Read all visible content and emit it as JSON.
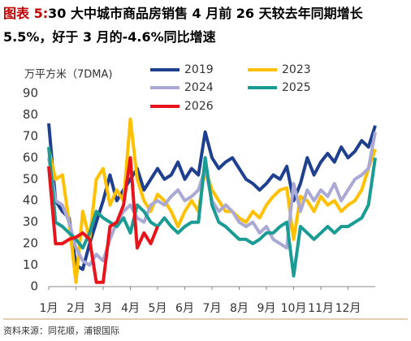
{
  "chart_data": {
    "type": "line",
    "title_prefix": "图表 5:",
    "title": "30 大中城市商品房销售 4 月前 26 天较去年同期增长 5.5%，好于 3 月的-4.6%同比增速",
    "y_label": "万平方米（7DMA)",
    "source": "资料来源：同花顺，浦银国际",
    "x": [
      1,
      1.25,
      1.5,
      1.75,
      2,
      2.25,
      2.5,
      2.75,
      3,
      3.25,
      3.5,
      3.75,
      4,
      4.25,
      4.5,
      4.75,
      5,
      5.25,
      5.5,
      5.75,
      6,
      6.25,
      6.5,
      6.75,
      7,
      7.25,
      7.5,
      7.75,
      8,
      8.25,
      8.5,
      8.75,
      9,
      9.25,
      9.5,
      9.75,
      10,
      10.25,
      10.5,
      10.75,
      11,
      11.25,
      11.5,
      11.75,
      12,
      12.25,
      12.5,
      12.75,
      13
    ],
    "xlim": [
      1,
      13
    ],
    "xticks": [
      {
        "value": 1,
        "label": "1月"
      },
      {
        "value": 2,
        "label": "2月"
      },
      {
        "value": 3,
        "label": "3月"
      },
      {
        "value": 4,
        "label": "4月"
      },
      {
        "value": 5,
        "label": "5月"
      },
      {
        "value": 6,
        "label": "6月"
      },
      {
        "value": 7,
        "label": "7月"
      },
      {
        "value": 8,
        "label": "8月"
      },
      {
        "value": 9,
        "label": "9月"
      },
      {
        "value": 10,
        "label": "10月"
      },
      {
        "value": 11,
        "label": "11月"
      },
      {
        "value": 12,
        "label": "12月"
      }
    ],
    "ylim": [
      0,
      90
    ],
    "yticks": [
      0,
      10,
      20,
      30,
      40,
      50,
      60,
      70,
      80,
      90
    ],
    "series": [
      {
        "name": "2019",
        "color": "#1f3f8f",
        "values": [
          76,
          40,
          35,
          32,
          10,
          8,
          20,
          30,
          40,
          52,
          40,
          45,
          50,
          55,
          45,
          50,
          55,
          50,
          52,
          58,
          50,
          55,
          52,
          72,
          60,
          55,
          58,
          60,
          55,
          50,
          48,
          45,
          48,
          52,
          50,
          56,
          40,
          48,
          60,
          52,
          58,
          62,
          58,
          65,
          60,
          63,
          68,
          65,
          75
        ]
      },
      {
        "name": "2023",
        "color": "#ffc000",
        "values": [
          64,
          50,
          52,
          30,
          2,
          35,
          22,
          50,
          55,
          38,
          45,
          40,
          78,
          50,
          40,
          35,
          43,
          40,
          35,
          28,
          35,
          40,
          35,
          55,
          45,
          40,
          35,
          35,
          32,
          30,
          35,
          32,
          38,
          42,
          45,
          46,
          22,
          42,
          40,
          35,
          42,
          38,
          40,
          35,
          38,
          40,
          45,
          55,
          64
        ]
      },
      {
        "name": "2024",
        "color": "#a9a9d4",
        "values": [
          60,
          40,
          38,
          30,
          18,
          12,
          10,
          15,
          12,
          22,
          30,
          35,
          38,
          32,
          30,
          38,
          40,
          38,
          42,
          45,
          40,
          42,
          45,
          55,
          40,
          35,
          38,
          35,
          30,
          28,
          30,
          25,
          28,
          22,
          20,
          18,
          48,
          35,
          45,
          40,
          45,
          42,
          48,
          40,
          45,
          50,
          52,
          55,
          72
        ]
      },
      {
        "name": "2025",
        "color": "#1a9c94",
        "values": [
          65,
          30,
          28,
          25,
          22,
          18,
          25,
          35,
          32,
          30,
          28,
          32,
          25,
          38,
          35,
          30,
          28,
          32,
          28,
          25,
          28,
          30,
          30,
          60,
          38,
          30,
          28,
          25,
          22,
          22,
          20,
          22,
          25,
          25,
          28,
          30,
          5,
          28,
          25,
          22,
          25,
          28,
          25,
          28,
          28,
          30,
          32,
          38,
          60
        ]
      },
      {
        "name": "2026",
        "color": "#e8141b",
        "values": [
          56,
          20,
          20,
          22,
          23,
          25,
          22,
          2,
          2,
          28,
          30,
          38,
          60,
          18,
          25,
          20,
          28,
          null,
          null,
          null,
          null,
          null,
          null,
          null,
          null,
          null,
          null,
          null,
          null,
          null,
          null,
          null,
          null,
          null,
          null,
          null,
          null,
          null,
          null,
          null,
          null,
          null,
          null,
          null,
          null,
          null,
          null,
          null,
          null
        ]
      }
    ]
  }
}
